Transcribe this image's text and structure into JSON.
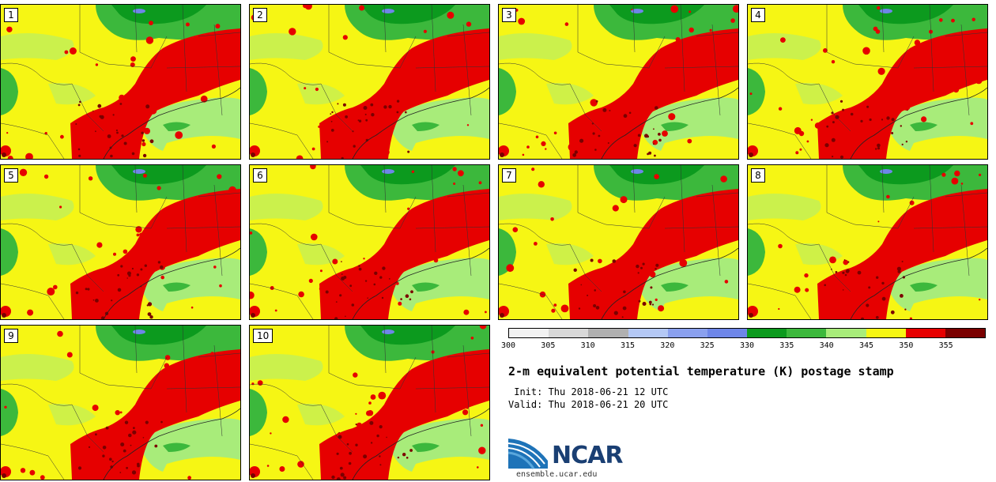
{
  "members": [
    {
      "label": "1"
    },
    {
      "label": "2"
    },
    {
      "label": "3"
    },
    {
      "label": "4"
    },
    {
      "label": "5"
    },
    {
      "label": "6"
    },
    {
      "label": "7"
    },
    {
      "label": "8"
    },
    {
      "label": "9"
    },
    {
      "label": "10"
    }
  ],
  "colorbar": {
    "ticks": [
      "300",
      "305",
      "310",
      "315",
      "320",
      "325",
      "330",
      "335",
      "340",
      "345",
      "350",
      "355"
    ],
    "colors": [
      "#f2f2f2",
      "#d8d8d8",
      "#b0b0b0",
      "#b4c8f5",
      "#8aa0ee",
      "#6e86e8",
      "#0c9a1e",
      "#3cb83c",
      "#a8ec7a",
      "#f6f614",
      "#e60000",
      "#7a0000"
    ]
  },
  "title": "2-m equivalent potential temperature (K) postage stamp",
  "init": " Init: Thu 2018-06-21 12 UTC",
  "valid": "Valid: Thu 2018-06-21 20 UTC",
  "logo_text": "NCAR",
  "site": "ensemble.ucar.edu",
  "colors": {
    "red": "#e60000",
    "darkred": "#7a0000",
    "yellow": "#f6f614",
    "lightgreen": "#a8ec7a",
    "green": "#3cb83c",
    "darkgreen": "#0c9a1e",
    "blue": "#6e86e8"
  }
}
